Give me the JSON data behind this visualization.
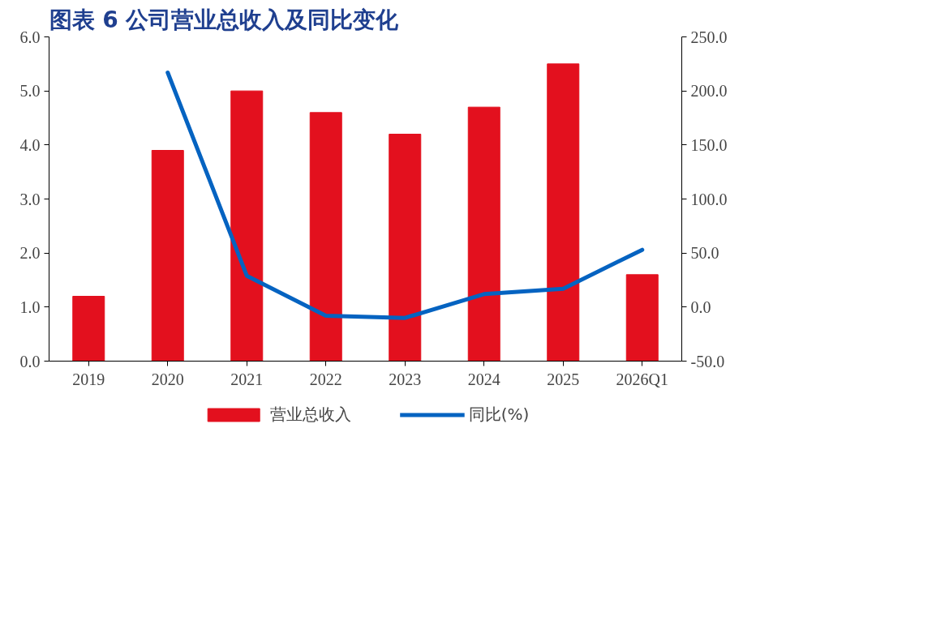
{
  "chart_data": {
    "type": "bar",
    "title": "图表 6   公司营业总收入及同比变化",
    "categories": [
      "2019",
      "2020",
      "2021",
      "2022",
      "2023",
      "2024",
      "2025",
      "2026Q1"
    ],
    "series": [
      {
        "name": "营业总收入",
        "color": "#e3101e",
        "values": [
          1.2,
          3.9,
          5.0,
          4.6,
          4.2,
          4.7,
          5.5,
          1.6
        ]
      },
      {
        "name": "同比(%)",
        "type": "line",
        "axis": "y2",
        "color": "#0563c1",
        "values": [
          null,
          217,
          29,
          -8,
          -10,
          12,
          17,
          53
        ]
      }
    ],
    "ylim": [
      0,
      6
    ],
    "yticks": [
      {
        "value": 0,
        "label": "0.0"
      },
      {
        "value": 1,
        "label": "1.0"
      },
      {
        "value": 2,
        "label": "2.0"
      },
      {
        "value": 3,
        "label": "3.0"
      },
      {
        "value": 4,
        "label": "4.0"
      },
      {
        "value": 5,
        "label": "5.0"
      },
      {
        "value": 6,
        "label": "6.0"
      }
    ],
    "y2lim": [
      -50,
      250
    ],
    "y2ticks": [
      {
        "value": -50,
        "label": "-50.0"
      },
      {
        "value": 0,
        "label": "0.0"
      },
      {
        "value": 50,
        "label": "50.0"
      },
      {
        "value": 100,
        "label": "100.0"
      },
      {
        "value": 150,
        "label": "150.0"
      },
      {
        "value": 200,
        "label": "200.0"
      },
      {
        "value": 250,
        "label": "250.0"
      }
    ],
    "legend": "bottom"
  }
}
